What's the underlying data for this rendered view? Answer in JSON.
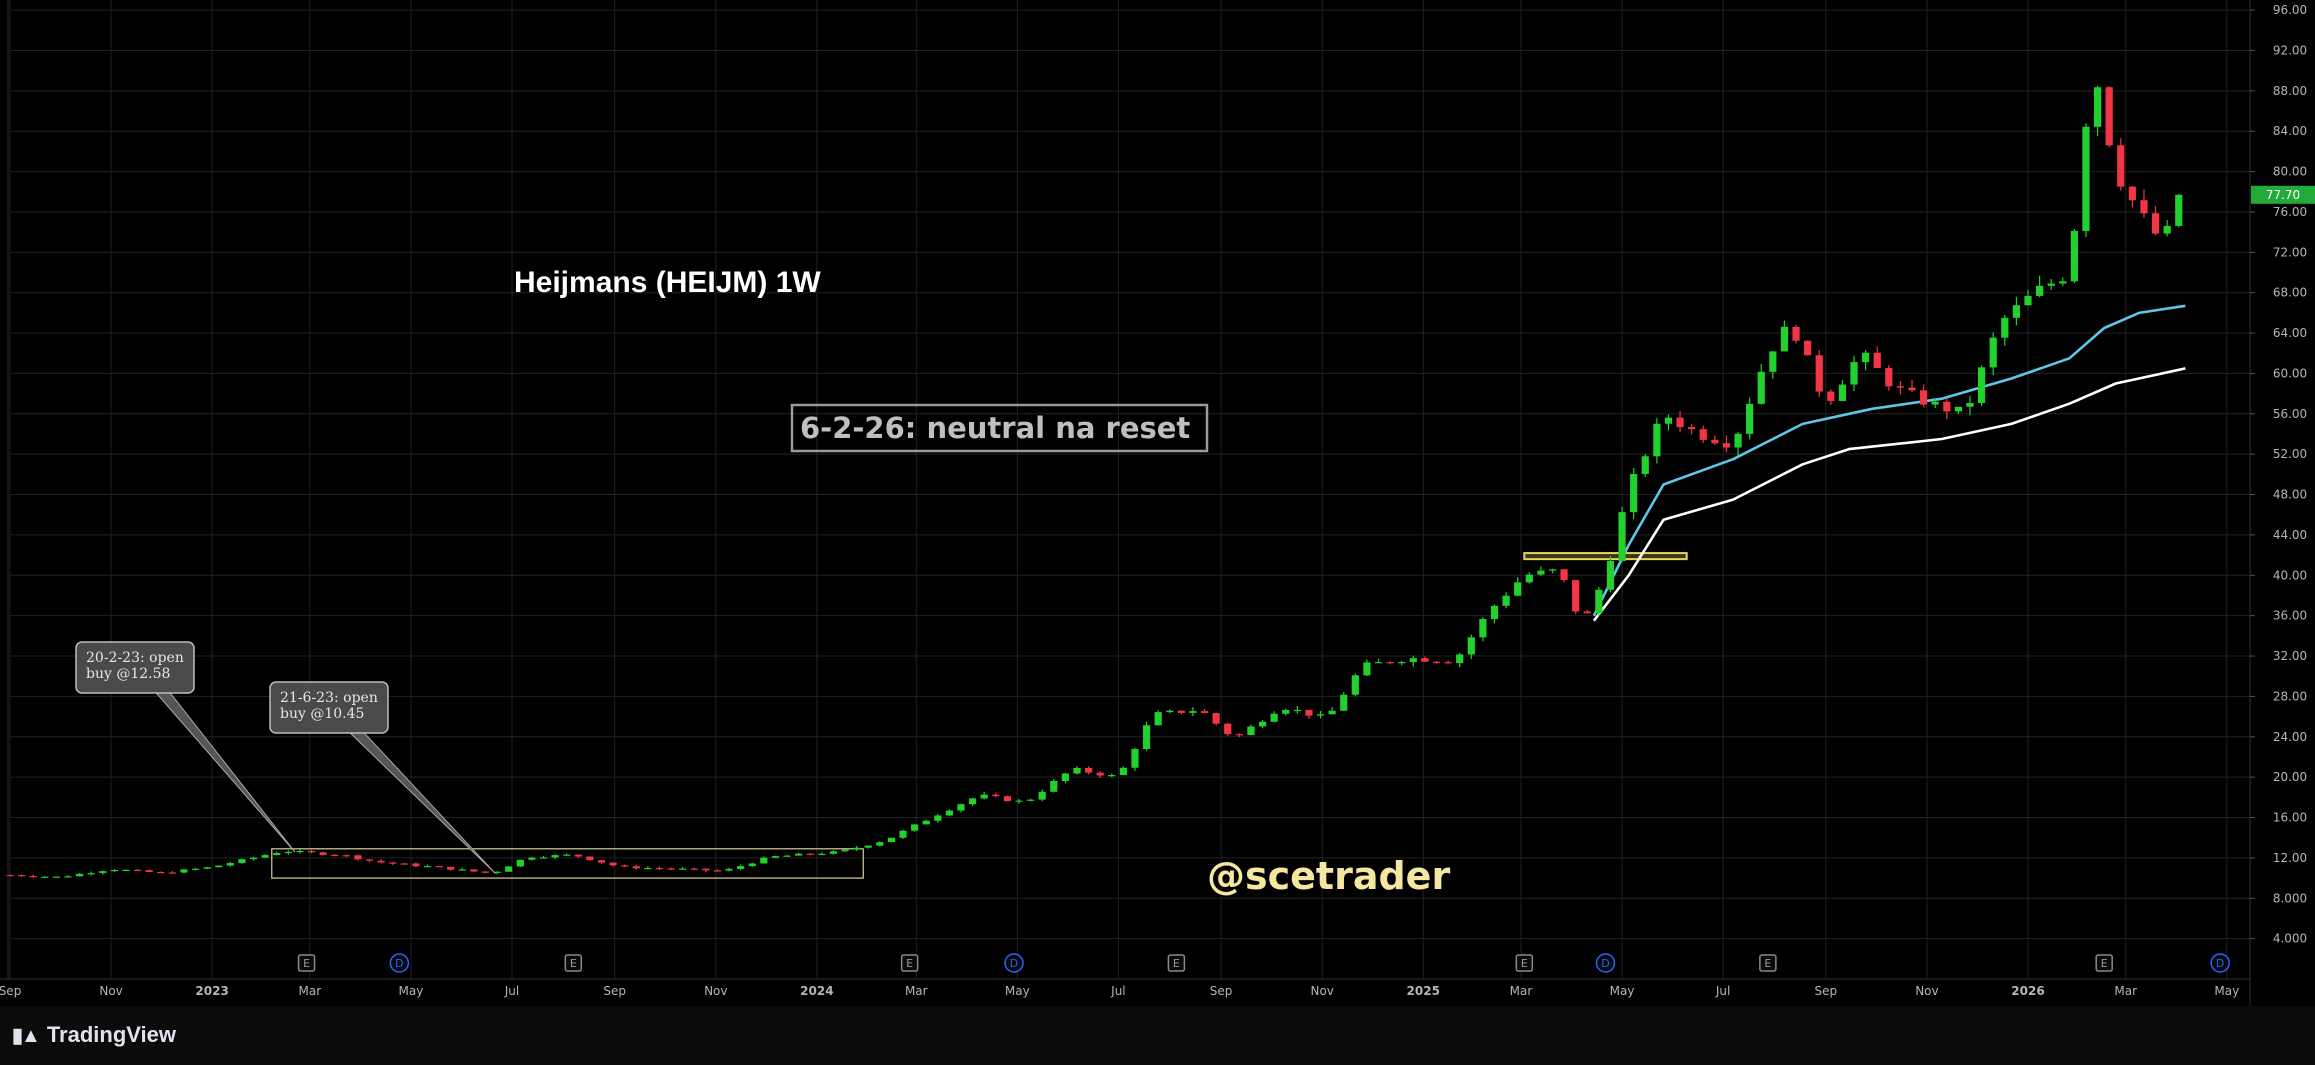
{
  "branding": {
    "logo_icon": "tradingview-logo-icon",
    "name": "TradingView"
  },
  "chart_data": {
    "type": "candlestick",
    "title": "Heijmans (HEIJM) 1W",
    "watermark": "@scetrader",
    "price_axis": {
      "ylim": [
        0,
        97
      ],
      "ticks": [
        4,
        8,
        12,
        16,
        20,
        24,
        28,
        32,
        36,
        40,
        44,
        48,
        52,
        56,
        60,
        64,
        68,
        72,
        76,
        80,
        84,
        88,
        92,
        96
      ],
      "tick_labels": [
        "4.000",
        "8.000",
        "12.00",
        "16.00",
        "20.00",
        "24.00",
        "28.00",
        "32.00",
        "36.00",
        "40.00",
        "44.00",
        "48.00",
        "52.00",
        "56.00",
        "60.00",
        "64.00",
        "68.00",
        "72.00",
        "76.00",
        "80.00",
        "84.00",
        "88.00",
        "92.00",
        "96.00"
      ],
      "last_price": 77.7,
      "last_price_label": "77.70",
      "last_price_color": "#22ab39"
    },
    "time_axis": {
      "start": "2022-09-01",
      "end": "2026-05-15",
      "ticks": [
        {
          "date": "2022-09-01",
          "label": "Sep"
        },
        {
          "date": "2022-11-01",
          "label": "Nov"
        },
        {
          "date": "2023-01-01",
          "label": "2023"
        },
        {
          "date": "2023-03-01",
          "label": "Mar"
        },
        {
          "date": "2023-05-01",
          "label": "May"
        },
        {
          "date": "2023-07-01",
          "label": "Jul"
        },
        {
          "date": "2023-09-01",
          "label": "Sep"
        },
        {
          "date": "2023-11-01",
          "label": "Nov"
        },
        {
          "date": "2024-01-01",
          "label": "2024"
        },
        {
          "date": "2024-03-01",
          "label": "Mar"
        },
        {
          "date": "2024-05-01",
          "label": "May"
        },
        {
          "date": "2024-07-01",
          "label": "Jul"
        },
        {
          "date": "2024-09-01",
          "label": "Sep"
        },
        {
          "date": "2024-11-01",
          "label": "Nov"
        },
        {
          "date": "2025-01-01",
          "label": "2025"
        },
        {
          "date": "2025-03-01",
          "label": "Mar"
        },
        {
          "date": "2025-05-01",
          "label": "May"
        },
        {
          "date": "2025-07-01",
          "label": "Jul"
        },
        {
          "date": "2025-09-01",
          "label": "Sep"
        },
        {
          "date": "2025-11-01",
          "label": "Nov"
        },
        {
          "date": "2026-01-01",
          "label": "2026"
        },
        {
          "date": "2026-03-01",
          "label": "Mar"
        },
        {
          "date": "2026-05-01",
          "label": "May"
        }
      ]
    },
    "grid": true,
    "colors": {
      "up": "#22d12e",
      "down": "#f23645",
      "background": "#000000",
      "grid": "#222222",
      "ma_fast": "#5fc7e6",
      "ma_slow": "#ffffff",
      "annotation_box": "#9a9a9a",
      "resistance": "#e6d65a",
      "range_box": "#d8cf9a",
      "title": "#ffffff",
      "watermark": "#f5e7a0",
      "event_earnings": "#8a8a8a",
      "event_dividend": "#2962ff"
    },
    "close_path": [
      [
        "2022-09-01",
        10.3
      ],
      [
        "2022-10-01",
        10.1
      ],
      [
        "2022-11-01",
        10.9
      ],
      [
        "2022-12-01",
        10.5
      ],
      [
        "2023-01-01",
        11.1
      ],
      [
        "2023-02-13",
        12.7
      ],
      [
        "2023-02-20",
        12.6
      ],
      [
        "2023-03-20",
        12.3
      ],
      [
        "2023-04-10",
        11.6
      ],
      [
        "2023-05-15",
        11.1
      ],
      [
        "2023-06-19",
        10.45
      ],
      [
        "2023-07-10",
        12.1
      ],
      [
        "2023-08-07",
        12.3
      ],
      [
        "2023-09-04",
        11.1
      ],
      [
        "2023-10-09",
        10.9
      ],
      [
        "2023-11-06",
        10.7
      ],
      [
        "2023-12-04",
        12.1
      ],
      [
        "2024-01-15",
        12.6
      ],
      [
        "2024-02-12",
        13.8
      ],
      [
        "2024-03-11",
        16.1
      ],
      [
        "2024-04-08",
        18.2
      ],
      [
        "2024-05-06",
        17.5
      ],
      [
        "2024-06-03",
        20.8
      ],
      [
        "2024-07-01",
        20.0
      ],
      [
        "2024-07-22",
        26.2
      ],
      [
        "2024-08-19",
        26.7
      ],
      [
        "2024-09-09",
        23.8
      ],
      [
        "2024-10-07",
        27.0
      ],
      [
        "2024-11-04",
        25.8
      ],
      [
        "2024-11-25",
        31.0
      ],
      [
        "2024-12-23",
        31.8
      ],
      [
        "2025-01-20",
        31.5
      ],
      [
        "2025-02-10",
        36.5
      ],
      [
        "2025-03-03",
        40.0
      ],
      [
        "2025-03-24",
        40.5
      ],
      [
        "2025-04-07",
        35.0
      ],
      [
        "2025-04-21",
        40.0
      ],
      [
        "2025-05-05",
        48.5
      ],
      [
        "2025-05-26",
        56.0
      ],
      [
        "2025-06-16",
        54.0
      ],
      [
        "2025-07-07",
        53.0
      ],
      [
        "2025-07-28",
        62.0
      ],
      [
        "2025-08-11",
        65.0
      ],
      [
        "2025-09-01",
        57.0
      ],
      [
        "2025-09-22",
        62.0
      ],
      [
        "2025-10-13",
        58.5
      ],
      [
        "2025-11-03",
        57.0
      ],
      [
        "2025-11-24",
        56.0
      ],
      [
        "2025-12-15",
        65.0
      ],
      [
        "2026-01-05",
        68.0
      ],
      [
        "2026-01-26",
        70.0
      ],
      [
        "2026-02-09",
        91.0
      ],
      [
        "2026-02-23",
        80.0
      ],
      [
        "2026-03-09",
        76.0
      ],
      [
        "2026-03-23",
        73.0
      ],
      [
        "2026-04-06",
        77.7
      ]
    ],
    "moving_averages": [
      {
        "color": "#5fc7e6",
        "points": [
          [
            "2025-04-14",
            36.0
          ],
          [
            "2025-05-05",
            43.0
          ],
          [
            "2025-05-26",
            49.0
          ],
          [
            "2025-07-07",
            51.5
          ],
          [
            "2025-08-18",
            55.0
          ],
          [
            "2025-09-29",
            56.5
          ],
          [
            "2025-11-10",
            57.5
          ],
          [
            "2025-12-22",
            59.5
          ],
          [
            "2026-01-26",
            61.5
          ],
          [
            "2026-02-16",
            64.5
          ],
          [
            "2026-03-09",
            66.0
          ],
          [
            "2026-04-06",
            66.7
          ]
        ]
      },
      {
        "color": "#ffffff",
        "points": [
          [
            "2025-04-14",
            35.5
          ],
          [
            "2025-05-05",
            40.0
          ],
          [
            "2025-05-26",
            45.5
          ],
          [
            "2025-07-07",
            47.5
          ],
          [
            "2025-08-18",
            51.0
          ],
          [
            "2025-09-15",
            52.5
          ],
          [
            "2025-11-10",
            53.5
          ],
          [
            "2025-12-22",
            55.0
          ],
          [
            "2026-01-26",
            57.0
          ],
          [
            "2026-02-23",
            59.0
          ],
          [
            "2026-04-06",
            60.5
          ]
        ]
      }
    ],
    "annotations": [
      {
        "text": "6-2-26: neutral na reset"
      },
      {
        "lines": [
          "20-2-23: open",
          "buy @12.58"
        ],
        "target": [
          "2023-02-20",
          12.58
        ]
      },
      {
        "lines": [
          "21-6-23: open",
          "buy @10.45"
        ],
        "target": [
          "2023-06-21",
          10.45
        ]
      }
    ],
    "range_box": {
      "from": "2023-02-06",
      "to": "2024-01-29",
      "low": 10.0,
      "high": 12.9
    },
    "resistance_zone": {
      "from": "2025-03-03",
      "to": "2025-06-09",
      "low": 41.6,
      "high": 42.2
    },
    "events": [
      {
        "type": "E",
        "date": "2023-02-27"
      },
      {
        "type": "D",
        "date": "2023-04-24"
      },
      {
        "type": "E",
        "date": "2023-08-07"
      },
      {
        "type": "E",
        "date": "2024-02-26"
      },
      {
        "type": "D",
        "date": "2024-04-29"
      },
      {
        "type": "E",
        "date": "2024-08-05"
      },
      {
        "type": "E",
        "date": "2025-03-03"
      },
      {
        "type": "D",
        "date": "2025-04-21"
      },
      {
        "type": "E",
        "date": "2025-07-28"
      },
      {
        "type": "E",
        "date": "2026-02-16"
      },
      {
        "type": "D",
        "date": "2026-04-27"
      }
    ]
  }
}
